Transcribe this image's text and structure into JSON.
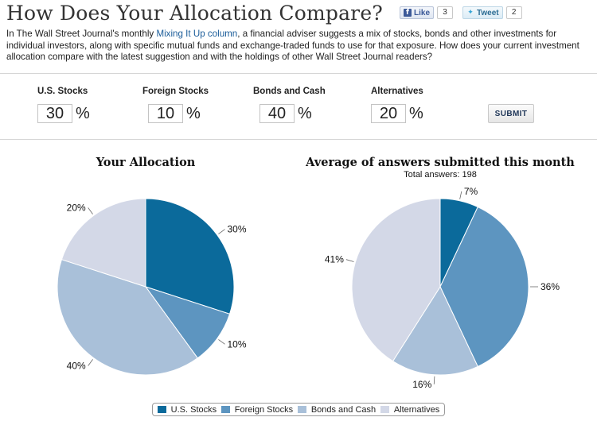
{
  "title": "How Does Your Allocation Compare?",
  "social": {
    "like_label": "Like",
    "like_icon": "facebook-icon",
    "like_count": "3",
    "tweet_label": "Tweet",
    "tweet_icon": "twitter-bird-icon",
    "tweet_count": "2"
  },
  "intro": {
    "before": "In The Wall Street Journal's monthly ",
    "link": "Mixing It Up column",
    "after": ", a financial adviser suggests a mix of stocks, bonds and other investments for individual investors, along with specific mutual funds and exchange-traded funds to use for that exposure. How does your current investment allocation compare with the latest suggestion and with the holdings of other Wall Street Journal readers?"
  },
  "form": {
    "fields": [
      {
        "label": "U.S. Stocks",
        "value": "30",
        "unit": "%"
      },
      {
        "label": "Foreign Stocks",
        "value": "10",
        "unit": "%"
      },
      {
        "label": "Bonds and Cash",
        "value": "40",
        "unit": "%"
      },
      {
        "label": "Alternatives",
        "value": "20",
        "unit": "%"
      }
    ],
    "submit_label": "SUBMIT"
  },
  "colors": {
    "us_stocks": "#0b6a9b",
    "foreign_stocks": "#5d95c0",
    "bonds_cash": "#a9c0d9",
    "alternatives": "#d3d8e7"
  },
  "chart_data": [
    {
      "type": "pie",
      "title": "Your Allocation",
      "subtitle": "",
      "categories": [
        "U.S. Stocks",
        "Foreign Stocks",
        "Bonds and Cash",
        "Alternatives"
      ],
      "values": [
        30,
        10,
        40,
        20
      ],
      "labels": [
        "30%",
        "10%",
        "40%",
        "20%"
      ]
    },
    {
      "type": "pie",
      "title": "Average of answers submitted this month",
      "subtitle": "Total answers: 198",
      "categories": [
        "U.S. Stocks",
        "Foreign Stocks",
        "Bonds and Cash",
        "Alternatives"
      ],
      "values": [
        7,
        36,
        16,
        41
      ],
      "labels": [
        "7%",
        "36%",
        "16%",
        "41%"
      ]
    }
  ],
  "legend": {
    "placement": "bottom",
    "items": [
      "U.S. Stocks",
      "Foreign Stocks",
      "Bonds and Cash",
      "Alternatives"
    ]
  }
}
